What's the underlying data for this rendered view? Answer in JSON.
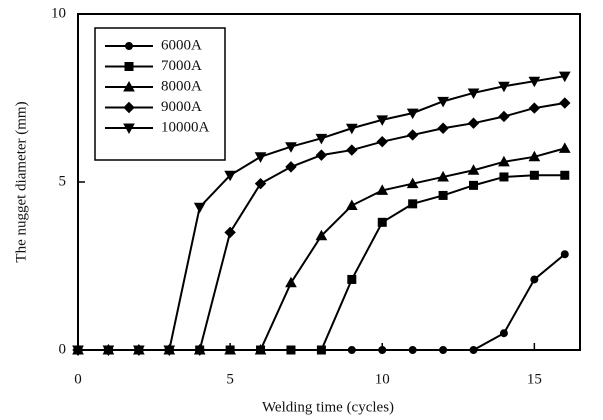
{
  "chart_data": {
    "type": "line",
    "xlabel": "Welding time (cycles)",
    "ylabel": "The nugget diameter (mm)",
    "x": [
      0,
      1,
      2,
      3,
      4,
      5,
      6,
      7,
      8,
      9,
      10,
      11,
      12,
      13,
      14,
      15,
      16
    ],
    "series": [
      {
        "name": "6000A",
        "color": "#000000",
        "marker": "circle",
        "values": [
          0,
          0,
          0,
          0,
          0,
          0,
          0,
          0,
          0,
          0,
          0,
          0,
          0,
          0,
          0.5,
          2.1,
          2.85
        ]
      },
      {
        "name": "7000A",
        "color": "#000000",
        "marker": "square",
        "values": [
          0,
          0,
          0,
          0,
          0,
          0,
          0,
          0,
          0,
          2.1,
          3.8,
          4.35,
          4.6,
          4.9,
          5.15,
          5.2,
          5.2
        ]
      },
      {
        "name": "8000A",
        "color": "#000000",
        "marker": "triangle-up",
        "values": [
          0,
          0,
          0,
          0,
          0,
          0,
          0,
          2.0,
          3.4,
          4.3,
          4.75,
          4.95,
          5.15,
          5.35,
          5.6,
          5.75,
          6.0
        ]
      },
      {
        "name": "9000A",
        "color": "#000000",
        "marker": "diamond",
        "values": [
          0,
          0,
          0,
          0,
          0,
          3.5,
          4.95,
          5.45,
          5.8,
          5.95,
          6.2,
          6.4,
          6.6,
          6.75,
          6.95,
          7.2,
          7.35
        ]
      },
      {
        "name": "10000A",
        "color": "#000000",
        "marker": "triangle-down",
        "values": [
          0,
          0,
          0,
          0,
          4.25,
          5.2,
          5.75,
          6.05,
          6.3,
          6.6,
          6.85,
          7.05,
          7.4,
          7.65,
          7.85,
          8.0,
          8.15
        ]
      }
    ],
    "xlim": [
      0,
      16.5
    ],
    "xticks": [
      0,
      5,
      10,
      15
    ],
    "ylim": [
      0,
      10
    ],
    "yticks": [
      0,
      5,
      10
    ],
    "legend": "upper left",
    "grid": false
  }
}
